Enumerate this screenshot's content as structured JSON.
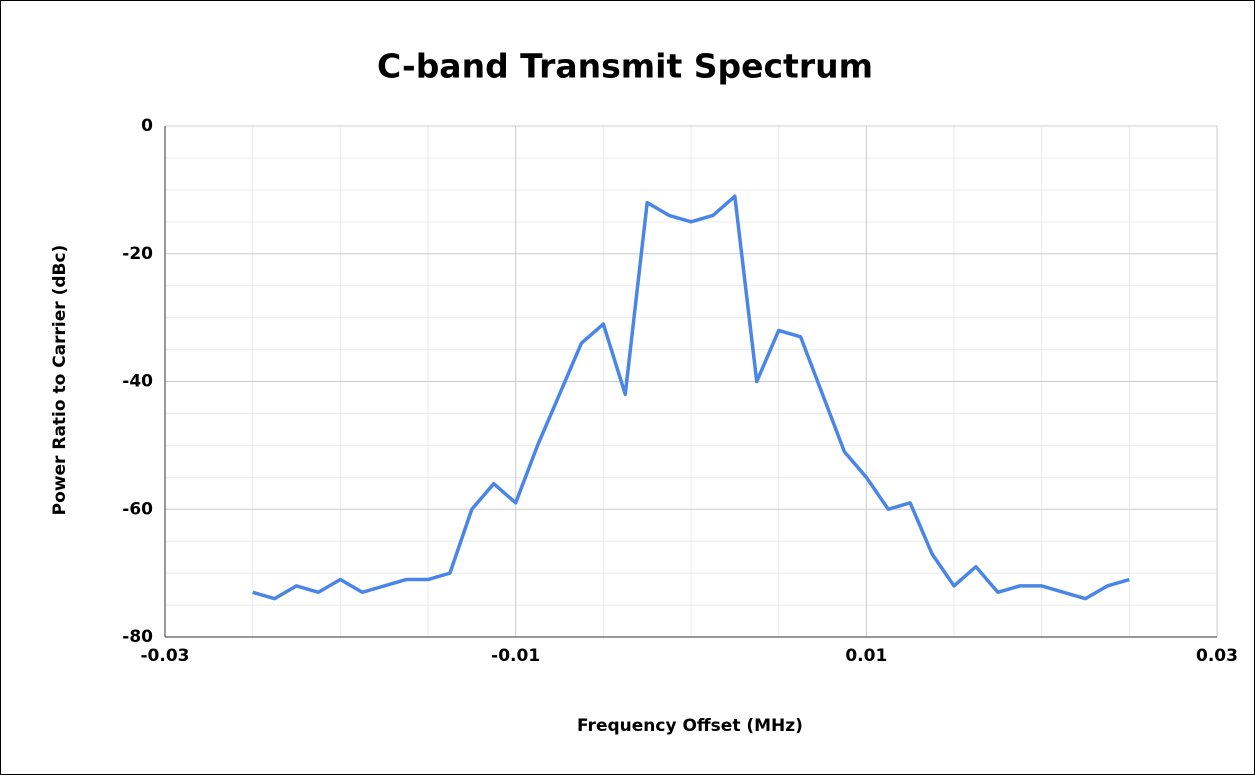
{
  "chart_data": {
    "type": "line",
    "title": "C-band Transmit Spectrum",
    "xlabel": "Frequency Offset (MHz)",
    "ylabel": "Power Ratio to Carrier (dBc)",
    "x": [
      -0.025,
      -0.02375,
      -0.0225,
      -0.02125,
      -0.02,
      -0.01875,
      -0.0175,
      -0.01625,
      -0.015,
      -0.01375,
      -0.0125,
      -0.01125,
      -0.01,
      -0.00875,
      -0.0075,
      -0.00625,
      -0.005,
      -0.00375,
      -0.0025,
      -0.00125,
      0,
      0.00125,
      0.0025,
      0.00375,
      0.005,
      0.00625,
      0.0075,
      0.00875,
      0.01,
      0.01125,
      0.0125,
      0.01375,
      0.015,
      0.01625,
      0.0175,
      0.01875,
      0.02,
      0.02125,
      0.0225,
      0.02375,
      0.025
    ],
    "series": [
      {
        "color": "#4a86e8",
        "values": [
          -73,
          -74,
          -72,
          -73,
          -71,
          -73,
          -72,
          -71,
          -71,
          -70,
          -60,
          -56,
          -59,
          -50,
          -42,
          -34,
          -31,
          -42,
          -12,
          -14,
          -15,
          -14,
          -11,
          -40,
          -32,
          -33,
          -42,
          -51,
          -55,
          -60,
          -59,
          -67,
          -72,
          -69,
          -73,
          -72,
          -72,
          -73,
          -74,
          -72,
          -71
        ]
      }
    ],
    "xlim": [
      -0.03,
      0.03
    ],
    "xticks": [
      -0.03,
      -0.01,
      0.01,
      0.03
    ],
    "xminor": [
      -0.025,
      -0.02,
      -0.015,
      -0.005,
      0,
      0.005,
      0.015,
      0.02,
      0.025
    ],
    "ylim": [
      -80,
      0
    ],
    "yticks": [
      0,
      -20,
      -40,
      -60,
      -80
    ],
    "yminor": [
      -5,
      -10,
      -15,
      -25,
      -30,
      -35,
      -45,
      -50,
      -55,
      -65,
      -70,
      -75
    ],
    "grid": true
  }
}
